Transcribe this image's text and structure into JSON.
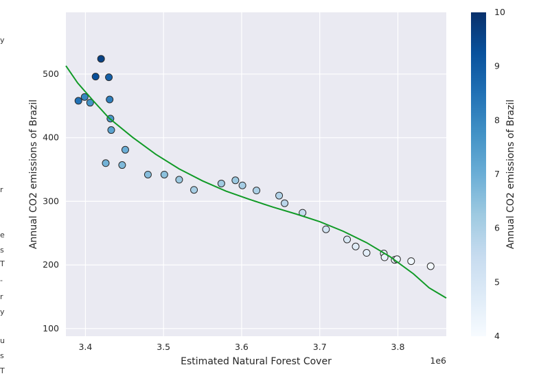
{
  "chart_data": {
    "type": "scatter",
    "xlabel": "Estimated Natural Forest Cover",
    "ylabel": "Annual CO2 emissions of Brazil",
    "x_offset_label": "1e6",
    "xlim": [
      3.375,
      3.862
    ],
    "ylim": [
      88,
      597
    ],
    "x_ticks": [
      3.4,
      3.5,
      3.6,
      3.7,
      3.8
    ],
    "x_tick_labels": [
      "3.4",
      "3.5",
      "3.6",
      "3.7",
      "3.8"
    ],
    "y_ticks": [
      100,
      200,
      300,
      400,
      500
    ],
    "y_tick_labels": [
      "100",
      "200",
      "300",
      "400",
      "500"
    ],
    "grid": true,
    "colorbar": {
      "label": "Annual CO2 emissions of Brazil",
      "range": [
        4,
        10
      ],
      "ticks": [
        4,
        5,
        6,
        7,
        8,
        9,
        10
      ],
      "tick_labels": [
        "4",
        "5",
        "6",
        "7",
        "8",
        "9",
        "10"
      ],
      "colormap": "Blues"
    },
    "points": [
      {
        "x": 3.391,
        "y": 458,
        "c": 8.5
      },
      {
        "x": 3.399,
        "y": 464,
        "c": 8.0
      },
      {
        "x": 3.406,
        "y": 455,
        "c": 7.7
      },
      {
        "x": 3.413,
        "y": 496,
        "c": 9.3
      },
      {
        "x": 3.42,
        "y": 524,
        "c": 9.6
      },
      {
        "x": 3.426,
        "y": 360,
        "c": 6.9
      },
      {
        "x": 3.43,
        "y": 495,
        "c": 8.9
      },
      {
        "x": 3.431,
        "y": 460,
        "c": 8.2
      },
      {
        "x": 3.432,
        "y": 430,
        "c": 7.6
      },
      {
        "x": 3.433,
        "y": 412,
        "c": 7.3
      },
      {
        "x": 3.447,
        "y": 357,
        "c": 6.7
      },
      {
        "x": 3.451,
        "y": 381,
        "c": 7.0
      },
      {
        "x": 3.48,
        "y": 342,
        "c": 6.6
      },
      {
        "x": 3.501,
        "y": 342,
        "c": 6.5
      },
      {
        "x": 3.52,
        "y": 334,
        "c": 6.3
      },
      {
        "x": 3.539,
        "y": 318,
        "c": 6.1
      },
      {
        "x": 3.574,
        "y": 328,
        "c": 6.2
      },
      {
        "x": 3.592,
        "y": 333,
        "c": 6.3
      },
      {
        "x": 3.601,
        "y": 325,
        "c": 6.1
      },
      {
        "x": 3.619,
        "y": 317,
        "c": 6.0
      },
      {
        "x": 3.648,
        "y": 309,
        "c": 5.9
      },
      {
        "x": 3.655,
        "y": 297,
        "c": 5.7
      },
      {
        "x": 3.678,
        "y": 282,
        "c": 5.5
      },
      {
        "x": 3.708,
        "y": 256,
        "c": 5.1
      },
      {
        "x": 3.735,
        "y": 240,
        "c": 4.9
      },
      {
        "x": 3.746,
        "y": 229,
        "c": 4.7
      },
      {
        "x": 3.76,
        "y": 219,
        "c": 4.6
      },
      {
        "x": 3.782,
        "y": 218,
        "c": 4.5
      },
      {
        "x": 3.783,
        "y": 212,
        "c": 4.4
      },
      {
        "x": 3.796,
        "y": 208,
        "c": 4.3
      },
      {
        "x": 3.799,
        "y": 209,
        "c": 4.3
      },
      {
        "x": 3.817,
        "y": 206,
        "c": 4.2
      },
      {
        "x": 3.842,
        "y": 198,
        "c": 4.1
      }
    ],
    "trend_line": {
      "color": "#109a26",
      "x": [
        3.375,
        3.39,
        3.41,
        3.43,
        3.46,
        3.49,
        3.52,
        3.55,
        3.58,
        3.61,
        3.64,
        3.67,
        3.7,
        3.73,
        3.76,
        3.79,
        3.82,
        3.84,
        3.862
      ],
      "y": [
        513,
        486,
        458,
        431,
        401,
        374,
        351,
        332,
        316,
        303,
        291,
        280,
        268,
        253,
        235,
        213,
        186,
        164,
        148
      ]
    }
  },
  "page_fragments": {
    "letters": [
      "y",
      "r",
      "e",
      "s",
      "T",
      "-",
      "r",
      "y",
      "u",
      "s",
      "T"
    ]
  }
}
